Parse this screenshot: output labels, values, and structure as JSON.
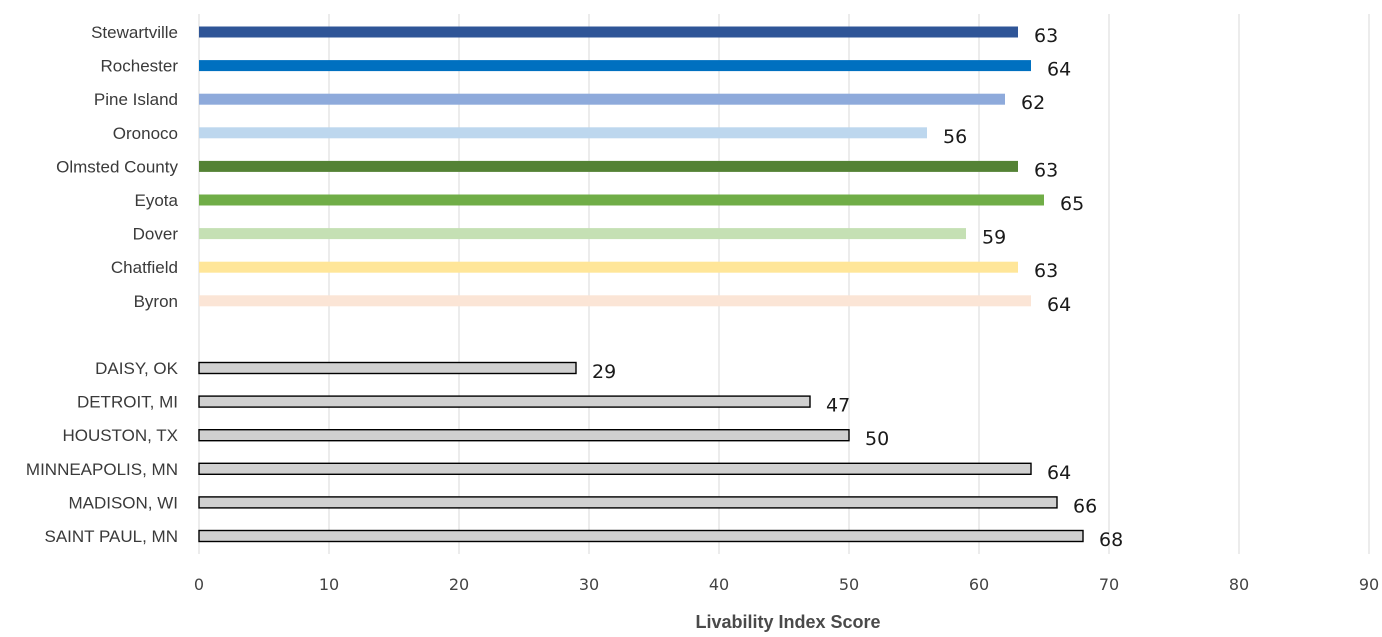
{
  "chart_data": {
    "type": "bar",
    "orientation": "horizontal",
    "xlabel": "Livability Index Score",
    "xlim": [
      0,
      90
    ],
    "xticks": [
      0,
      10,
      20,
      30,
      40,
      50,
      60,
      70,
      80,
      90
    ],
    "grid": "vertical",
    "legend": "none",
    "groups": [
      {
        "bars": [
          {
            "label": "Stewartville",
            "value": 63,
            "color": "#2f5597",
            "outlined": false
          },
          {
            "label": "Rochester",
            "value": 64,
            "color": "#0070c0",
            "outlined": false
          },
          {
            "label": "Pine Island",
            "value": 62,
            "color": "#8eaadb",
            "outlined": false
          },
          {
            "label": "Oronoco",
            "value": 56,
            "color": "#bdd7ee",
            "outlined": false
          },
          {
            "label": "Olmsted County",
            "value": 63,
            "color": "#548235",
            "outlined": false
          },
          {
            "label": "Eyota",
            "value": 65,
            "color": "#70ad47",
            "outlined": false
          },
          {
            "label": "Dover",
            "value": 59,
            "color": "#c5e0b4",
            "outlined": false
          },
          {
            "label": "Chatfield",
            "value": 63,
            "color": "#ffe699",
            "outlined": false
          },
          {
            "label": "Byron",
            "value": 64,
            "color": "#fbe5d6",
            "outlined": false
          }
        ]
      },
      {
        "bars": [
          {
            "label": "DAISY, OK",
            "value": 29,
            "color": "#d0d0d0",
            "outlined": true
          },
          {
            "label": "DETROIT, MI",
            "value": 47,
            "color": "#d0d0d0",
            "outlined": true
          },
          {
            "label": "HOUSTON, TX",
            "value": 50,
            "color": "#d0d0d0",
            "outlined": true
          },
          {
            "label": "MINNEAPOLIS, MN",
            "value": 64,
            "color": "#d0d0d0",
            "outlined": true
          },
          {
            "label": "MADISON, WI",
            "value": 66,
            "color": "#d0d0d0",
            "outlined": true
          },
          {
            "label": "SAINT PAUL, MN",
            "value": 68,
            "color": "#d0d0d0",
            "outlined": true
          }
        ]
      }
    ]
  }
}
